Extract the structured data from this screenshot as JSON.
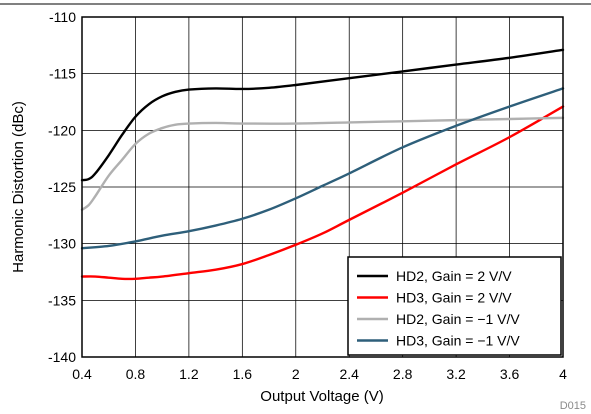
{
  "chart_data": {
    "type": "line",
    "title": "",
    "xlabel": "Output Voltage (V)",
    "ylabel": "Harmonic Distortion (dBc)",
    "xlim": [
      0.4,
      4
    ],
    "ylim": [
      -140,
      -110
    ],
    "xticks": [
      0.4,
      0.8,
      1.2,
      1.6,
      2,
      2.4,
      2.8,
      3.2,
      3.6,
      4
    ],
    "xtick_labels": [
      "0.4",
      "0.8",
      "1.2",
      "1.6",
      "2",
      "2.4",
      "2.8",
      "3.2",
      "3.6",
      "4"
    ],
    "yticks": [
      -110,
      -115,
      -120,
      -125,
      -130,
      -135,
      -140
    ],
    "ytick_labels": [
      "-110",
      "-115",
      "-120",
      "-125",
      "-130",
      "-135",
      "-140"
    ],
    "grid": true,
    "legend_position": "bottom-right",
    "figure_id": "D015",
    "series": [
      {
        "name": "HD2, Gain = 2 V/V",
        "color": "#000000",
        "x": [
          0.4,
          0.45,
          0.5,
          0.6,
          0.7,
          0.8,
          0.9,
          1.0,
          1.1,
          1.2,
          1.4,
          1.6,
          1.8,
          2.0,
          2.4,
          2.8,
          3.2,
          3.6,
          4.0
        ],
        "y": [
          -124.4,
          -124.3,
          -123.8,
          -122.2,
          -120.4,
          -118.8,
          -117.7,
          -117.0,
          -116.6,
          -116.4,
          -116.3,
          -116.35,
          -116.25,
          -116.0,
          -115.4,
          -114.8,
          -114.2,
          -113.6,
          -112.9
        ]
      },
      {
        "name": "HD3, Gain = 2 V/V",
        "color": "#ff0000",
        "x": [
          0.4,
          0.5,
          0.6,
          0.7,
          0.8,
          0.9,
          1.0,
          1.2,
          1.4,
          1.6,
          1.8,
          2.0,
          2.2,
          2.4,
          2.8,
          3.2,
          3.6,
          4.0
        ],
        "y": [
          -132.9,
          -132.9,
          -133.0,
          -133.1,
          -133.1,
          -133.0,
          -132.9,
          -132.6,
          -132.3,
          -131.8,
          -131.0,
          -130.1,
          -129.1,
          -127.9,
          -125.5,
          -123.0,
          -120.6,
          -117.9
        ]
      },
      {
        "name": "HD2, Gain = −1 V/V",
        "color": "#b0b0b0",
        "x": [
          0.4,
          0.45,
          0.5,
          0.6,
          0.7,
          0.8,
          0.9,
          1.0,
          1.1,
          1.2,
          1.4,
          1.6,
          2.0,
          2.4,
          2.8,
          3.2,
          3.6,
          4.0
        ],
        "y": [
          -127.0,
          -126.6,
          -125.8,
          -124.0,
          -122.6,
          -121.2,
          -120.3,
          -119.8,
          -119.5,
          -119.4,
          -119.35,
          -119.4,
          -119.4,
          -119.3,
          -119.2,
          -119.1,
          -119.0,
          -118.9
        ]
      },
      {
        "name": "HD3, Gain = −1 V/V",
        "color": "#2e5f7a",
        "x": [
          0.4,
          0.6,
          0.8,
          1.0,
          1.2,
          1.4,
          1.6,
          1.8,
          2.0,
          2.2,
          2.4,
          2.8,
          3.2,
          3.6,
          4.0
        ],
        "y": [
          -130.4,
          -130.2,
          -129.8,
          -129.3,
          -128.9,
          -128.4,
          -127.8,
          -127.0,
          -126.0,
          -124.9,
          -123.8,
          -121.5,
          -119.6,
          -117.9,
          -116.3
        ]
      }
    ]
  }
}
